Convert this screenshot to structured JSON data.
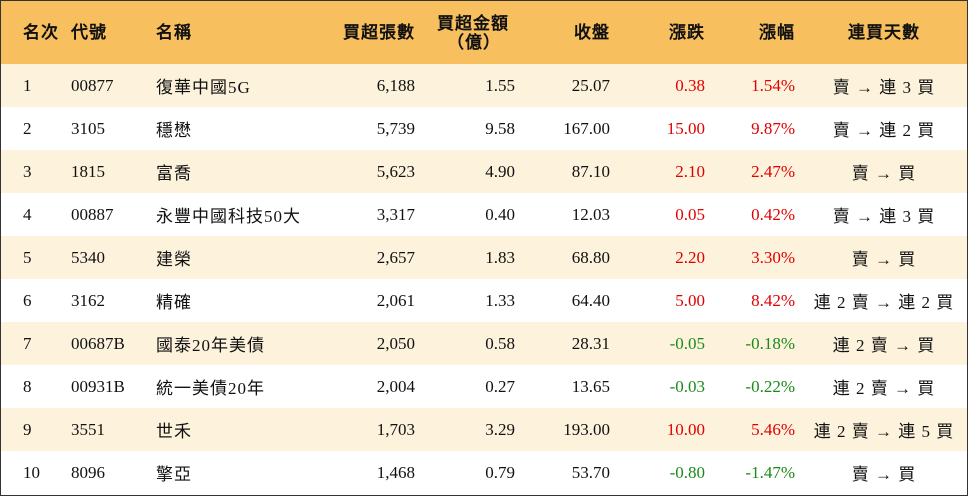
{
  "headers": {
    "rank": "名次",
    "code": "代號",
    "name": "名稱",
    "volume": "買超張數",
    "amount_line1": "買超金額",
    "amount_line2": "（億）",
    "close": "收盤",
    "change": "漲跌",
    "pct": "漲幅",
    "days": "連買天數"
  },
  "rows": [
    {
      "rank": "1",
      "code": "00877",
      "name": "復華中國5G",
      "volume": "6,188",
      "amount": "1.55",
      "close": "25.07",
      "change": "0.38",
      "pct": "1.54%",
      "days": "賣 → 連 3 買",
      "trend": "up"
    },
    {
      "rank": "2",
      "code": "3105",
      "name": "穩懋",
      "volume": "5,739",
      "amount": "9.58",
      "close": "167.00",
      "change": "15.00",
      "pct": "9.87%",
      "days": "賣 → 連 2 買",
      "trend": "up"
    },
    {
      "rank": "3",
      "code": "1815",
      "name": "富喬",
      "volume": "5,623",
      "amount": "4.90",
      "close": "87.10",
      "change": "2.10",
      "pct": "2.47%",
      "days": "賣 → 買",
      "trend": "up"
    },
    {
      "rank": "4",
      "code": "00887",
      "name": "永豐中國科技50大",
      "volume": "3,317",
      "amount": "0.40",
      "close": "12.03",
      "change": "0.05",
      "pct": "0.42%",
      "days": "賣 → 連 3 買",
      "trend": "up"
    },
    {
      "rank": "5",
      "code": "5340",
      "name": "建榮",
      "volume": "2,657",
      "amount": "1.83",
      "close": "68.80",
      "change": "2.20",
      "pct": "3.30%",
      "days": "賣 → 買",
      "trend": "up"
    },
    {
      "rank": "6",
      "code": "3162",
      "name": "精確",
      "volume": "2,061",
      "amount": "1.33",
      "close": "64.40",
      "change": "5.00",
      "pct": "8.42%",
      "days": "連 2 賣 → 連 2 買",
      "trend": "up"
    },
    {
      "rank": "7",
      "code": "00687B",
      "name": "國泰20年美債",
      "volume": "2,050",
      "amount": "0.58",
      "close": "28.31",
      "change": "-0.05",
      "pct": "-0.18%",
      "days": "連 2 賣 → 買",
      "trend": "down"
    },
    {
      "rank": "8",
      "code": "00931B",
      "name": "統一美債20年",
      "volume": "2,004",
      "amount": "0.27",
      "close": "13.65",
      "change": "-0.03",
      "pct": "-0.22%",
      "days": "連 2 賣 → 買",
      "trend": "down"
    },
    {
      "rank": "9",
      "code": "3551",
      "name": "世禾",
      "volume": "1,703",
      "amount": "3.29",
      "close": "193.00",
      "change": "10.00",
      "pct": "5.46%",
      "days": "連 2 賣 → 連 5 買",
      "trend": "up"
    },
    {
      "rank": "10",
      "code": "8096",
      "name": "擎亞",
      "volume": "1,468",
      "amount": "0.79",
      "close": "53.70",
      "change": "-0.80",
      "pct": "-1.47%",
      "days": "賣 → 買",
      "trend": "down"
    }
  ],
  "colors": {
    "header_bg": "#f7bf5e",
    "odd_row_bg": "#fdf2dc",
    "even_row_bg": "#ffffff",
    "up": "#e00000",
    "down": "#1a8a1a"
  }
}
